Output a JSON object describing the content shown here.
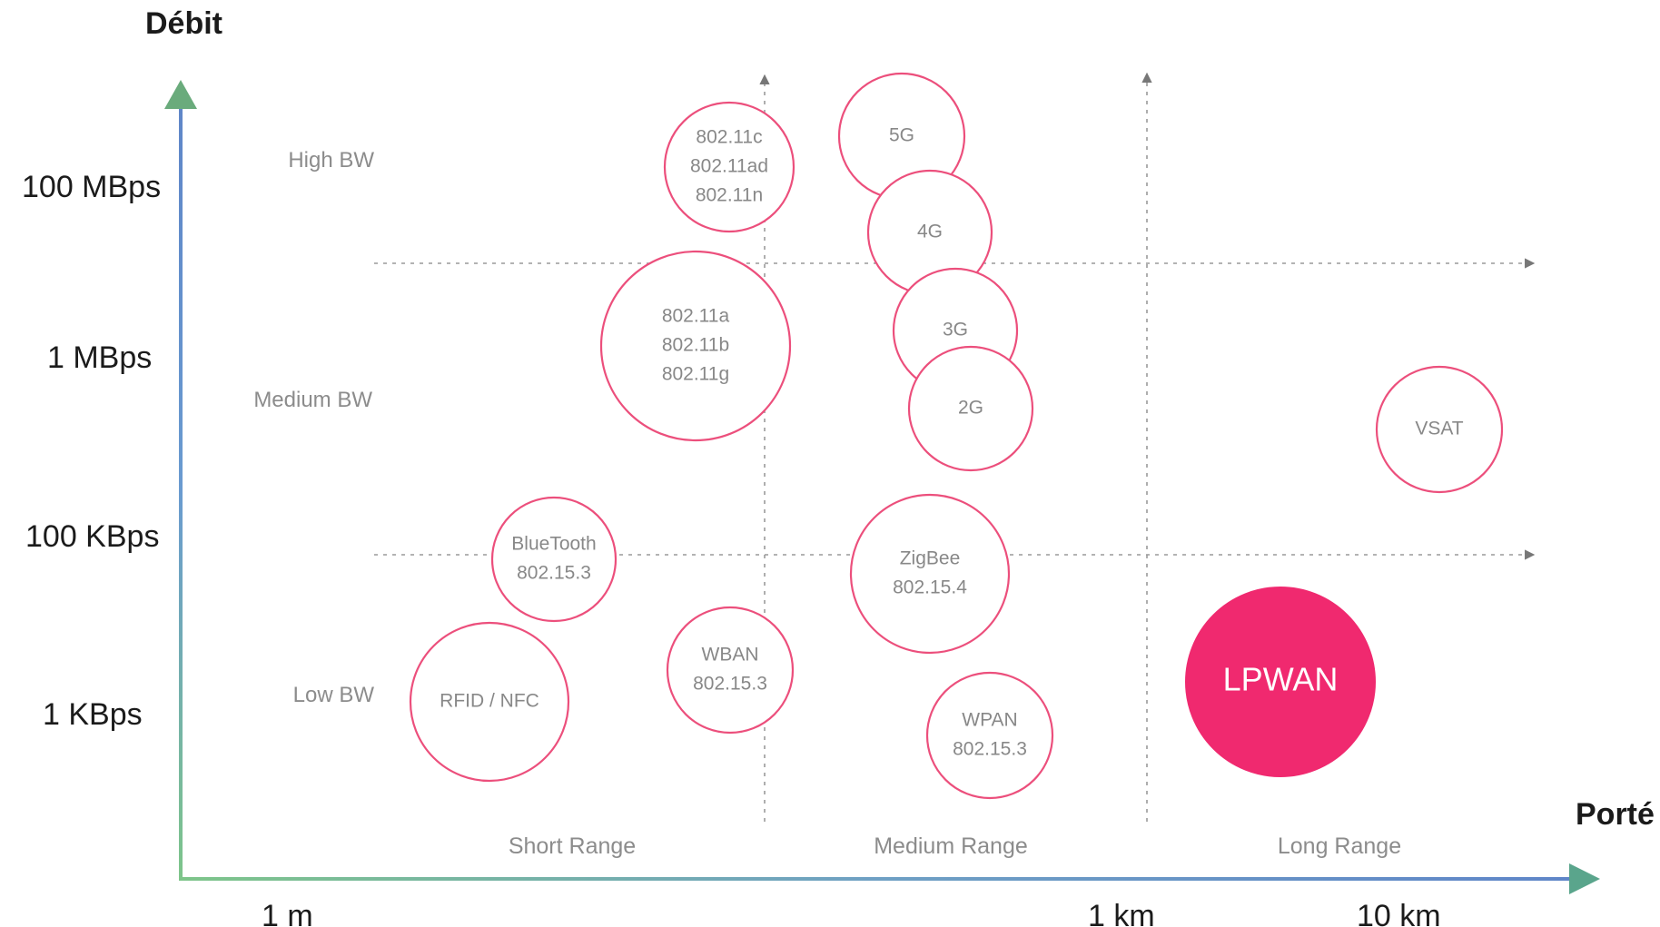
{
  "axes": {
    "y_title": "Débit",
    "x_title": "Porté",
    "y_ticks": [
      "100 MBps",
      "1 MBps",
      "100 KBps",
      "1 KBps"
    ],
    "x_ticks": [
      "1 m",
      "1 km",
      "10 km"
    ]
  },
  "bands": {
    "high": "High BW",
    "medium": "Medium BW",
    "low": "Low BW"
  },
  "ranges": {
    "short": "Short Range",
    "medium": "Medium Range",
    "long": "Long Range"
  },
  "bubbles": [
    {
      "id": "wifi-high",
      "lines": [
        "802.11c",
        "802.11ad",
        "802.11n"
      ]
    },
    {
      "id": "5g",
      "lines": [
        "5G"
      ]
    },
    {
      "id": "4g",
      "lines": [
        "4G"
      ]
    },
    {
      "id": "3g",
      "lines": [
        "3G"
      ]
    },
    {
      "id": "2g",
      "lines": [
        "2G"
      ]
    },
    {
      "id": "wifi-medium",
      "lines": [
        "802.11a",
        "802.11b",
        "802.11g"
      ]
    },
    {
      "id": "vsat",
      "lines": [
        "VSAT"
      ]
    },
    {
      "id": "bluetooth",
      "lines": [
        "BlueTooth",
        "802.15.3"
      ]
    },
    {
      "id": "zigbee",
      "lines": [
        "ZigBee",
        "802.15.4"
      ]
    },
    {
      "id": "rfid",
      "lines": [
        "RFID / NFC"
      ]
    },
    {
      "id": "wban",
      "lines": [
        "WBAN",
        "802.15.3"
      ]
    },
    {
      "id": "wpan",
      "lines": [
        "WPAN",
        "802.15.3"
      ]
    },
    {
      "id": "lpwan",
      "lines": [
        "LPWAN"
      ],
      "highlight": true
    }
  ],
  "colors": {
    "bubble_stroke": "#ec4f7c",
    "highlight_fill": "#f0296f",
    "axis_y": "#6a8fcf",
    "axis_x": "#6fae86"
  }
}
